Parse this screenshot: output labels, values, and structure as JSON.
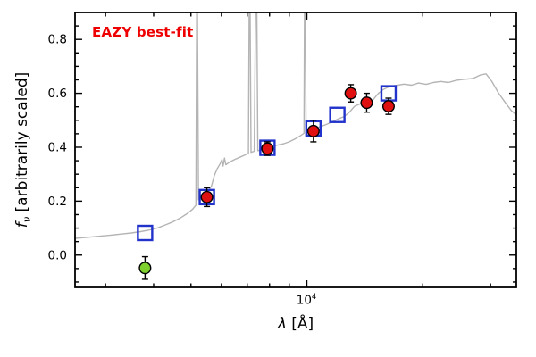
{
  "figure": {
    "annotation": {
      "text": "EAZY best-fit",
      "color": "#ee0000"
    },
    "axes": {
      "ylabel": {
        "symbol": "f",
        "sub": "ν",
        "rest": " [arbitrarily scaled]"
      },
      "xlabel": {
        "symbol": "λ",
        "rest": " [Å]"
      },
      "xtick_label": {
        "base": "10",
        "exponent": "4"
      }
    }
  },
  "chart_data": {
    "type": "line+scatter",
    "title": "",
    "annotation": "EAZY best-fit",
    "xlabel": "λ [Å]",
    "ylabel": "f_ν [arbitrarily scaled]",
    "x_scale": "log",
    "xlim": [
      2500,
      35000
    ],
    "ylim": [
      -0.12,
      0.9
    ],
    "yticks": [
      0.0,
      0.2,
      0.4,
      0.6,
      0.8
    ],
    "y_minor_step": 0.05,
    "xticks_major": [
      10000
    ],
    "xticks_minor": [
      3000,
      4000,
      5000,
      6000,
      7000,
      8000,
      9000,
      20000,
      30000
    ],
    "grid": false,
    "legend": "none",
    "series": [
      {
        "name": "model-spectrum",
        "kind": "line",
        "color": "#b4b4b4",
        "points": [
          [
            2500,
            0.062
          ],
          [
            2700,
            0.066
          ],
          [
            2900,
            0.07
          ],
          [
            3100,
            0.074
          ],
          [
            3300,
            0.078
          ],
          [
            3500,
            0.082
          ],
          [
            3700,
            0.087
          ],
          [
            3900,
            0.093
          ],
          [
            4100,
            0.101
          ],
          [
            4300,
            0.112
          ],
          [
            4500,
            0.124
          ],
          [
            4700,
            0.138
          ],
          [
            4900,
            0.155
          ],
          [
            5050,
            0.17
          ],
          [
            5150,
            0.185
          ],
          [
            5185,
            1.2
          ],
          [
            5230,
            0.205
          ],
          [
            5350,
            0.218
          ],
          [
            5500,
            0.232
          ],
          [
            5650,
            0.255
          ],
          [
            5750,
            0.295
          ],
          [
            5850,
            0.32
          ],
          [
            5950,
            0.338
          ],
          [
            6020,
            0.355
          ],
          [
            6060,
            0.33
          ],
          [
            6110,
            0.36
          ],
          [
            6160,
            0.335
          ],
          [
            6300,
            0.345
          ],
          [
            6500,
            0.355
          ],
          [
            6700,
            0.363
          ],
          [
            6900,
            0.371
          ],
          [
            7050,
            0.377
          ],
          [
            7100,
            1.2
          ],
          [
            7160,
            0.381
          ],
          [
            7300,
            0.385
          ],
          [
            7390,
            1.2
          ],
          [
            7460,
            0.387
          ],
          [
            7650,
            0.392
          ],
          [
            7900,
            0.398
          ],
          [
            8150,
            0.404
          ],
          [
            8400,
            0.408
          ],
          [
            8700,
            0.413
          ],
          [
            9000,
            0.42
          ],
          [
            9300,
            0.43
          ],
          [
            9600,
            0.442
          ],
          [
            9830,
            0.452
          ],
          [
            9880,
            1.2
          ],
          [
            9950,
            0.458
          ],
          [
            10200,
            0.464
          ],
          [
            10500,
            0.47
          ],
          [
            10900,
            0.477
          ],
          [
            11300,
            0.486
          ],
          [
            11700,
            0.496
          ],
          [
            12100,
            0.506
          ],
          [
            12500,
            0.514
          ],
          [
            12900,
            0.53
          ],
          [
            13300,
            0.552
          ],
          [
            13700,
            0.56
          ],
          [
            14100,
            0.568
          ],
          [
            14500,
            0.556
          ],
          [
            14900,
            0.578
          ],
          [
            15300,
            0.598
          ],
          [
            15700,
            0.612
          ],
          [
            16100,
            0.62
          ],
          [
            16600,
            0.626
          ],
          [
            17200,
            0.63
          ],
          [
            17900,
            0.634
          ],
          [
            18700,
            0.63
          ],
          [
            19500,
            0.638
          ],
          [
            20400,
            0.633
          ],
          [
            21300,
            0.64
          ],
          [
            22300,
            0.644
          ],
          [
            23300,
            0.64
          ],
          [
            24400,
            0.648
          ],
          [
            25500,
            0.652
          ],
          [
            27000,
            0.655
          ],
          [
            28200,
            0.668
          ],
          [
            29200,
            0.672
          ],
          [
            30200,
            0.645
          ],
          [
            31500,
            0.6
          ],
          [
            32800,
            0.565
          ],
          [
            34000,
            0.535
          ],
          [
            35000,
            0.52
          ]
        ]
      },
      {
        "name": "model-photometry",
        "kind": "scatter",
        "marker": "open-square",
        "color": "#2233cc",
        "points": [
          [
            3800,
            0.082
          ],
          [
            5500,
            0.215
          ],
          [
            7900,
            0.398
          ],
          [
            10400,
            0.47
          ],
          [
            12000,
            0.52
          ],
          [
            16300,
            0.6
          ]
        ]
      },
      {
        "name": "observed-photometry",
        "kind": "scatter",
        "marker": "circle",
        "color": "#e01010",
        "edge": "#000000",
        "points": [
          [
            5500,
            0.215,
            0.035
          ],
          [
            7900,
            0.395,
            0.025
          ],
          [
            10400,
            0.46,
            0.04
          ],
          [
            13000,
            0.6,
            0.032
          ],
          [
            14300,
            0.565,
            0.035
          ],
          [
            16300,
            0.552,
            0.03
          ]
        ]
      },
      {
        "name": "nondetection-point",
        "kind": "scatter",
        "marker": "circle",
        "color": "#7ed02c",
        "edge": "#000000",
        "points": [
          [
            3800,
            -0.048,
            0.042
          ]
        ]
      }
    ]
  }
}
